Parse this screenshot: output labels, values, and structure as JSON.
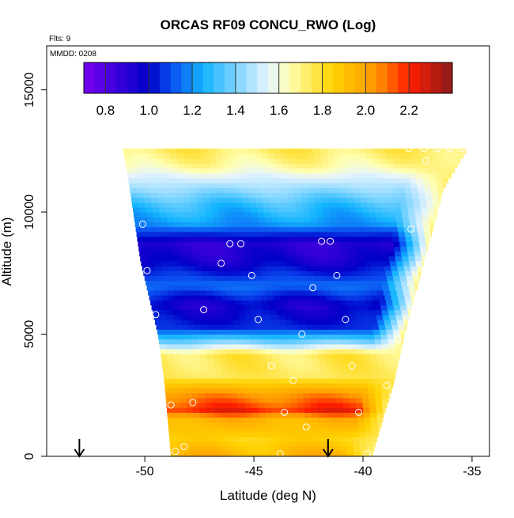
{
  "chart_data": {
    "type": "heatmap",
    "title": "ORCAS RF09 CONCU_RWO (Log)",
    "flights_label": "Flts: 9",
    "date_label": "MMDD: 0208",
    "xlabel": "Latitude (deg N)",
    "ylabel": "Altitude (m)",
    "xlim": [
      -54.5,
      -34.2
    ],
    "ylim": [
      0,
      16800
    ],
    "x_ticks": [
      -50,
      -45,
      -40,
      -35
    ],
    "x_tick_labels": [
      "-50",
      "-45",
      "-40",
      "-35"
    ],
    "y_ticks": [
      0,
      5000,
      10000,
      15000
    ],
    "y_tick_labels": [
      "0",
      "5000",
      "10000",
      "15000"
    ],
    "colorbar": {
      "range": [
        0.7,
        2.4
      ],
      "ticks": [
        0.8,
        1.0,
        1.2,
        1.4,
        1.6,
        1.8,
        2.0,
        2.2
      ],
      "tick_labels": [
        "0.8",
        "1.0",
        "1.2",
        "1.4",
        "1.6",
        "1.8",
        "2.0",
        "2.2"
      ],
      "colors": [
        "#7a00ee",
        "#0000c8",
        "#0a4cf0",
        "#12b4ff",
        "#e6f4ff",
        "#ffffb0",
        "#ffd200",
        "#ff9600",
        "#ff1e00",
        "#8b1a1a"
      ],
      "stops": [
        0.7,
        1.0,
        1.1,
        1.25,
        1.55,
        1.65,
        1.85,
        2.05,
        2.2,
        2.4
      ]
    },
    "domain": {
      "bottom": [
        -48.8,
        -39.6
      ],
      "top": [
        -51.0,
        -35.2
      ],
      "top_altitude": 12600,
      "side_breaks": [
        {
          "alt": 0,
          "left": -48.8,
          "right": -39.6
        },
        {
          "alt": 3000,
          "left": -49.1,
          "right": -38.6
        },
        {
          "alt": 5000,
          "left": -49.4,
          "right": -38.1
        },
        {
          "alt": 8000,
          "left": -50.2,
          "right": -37.2
        },
        {
          "alt": 11000,
          "left": -50.7,
          "right": -36.3
        },
        {
          "alt": 12600,
          "left": -51.0,
          "right": -35.2
        }
      ]
    },
    "layers": [
      {
        "alt": 0,
        "value": 1.95
      },
      {
        "alt": 700,
        "value": 1.85
      },
      {
        "alt": 1500,
        "value": 1.95
      },
      {
        "alt": 1900,
        "value": 2.2
      },
      {
        "alt": 2500,
        "value": 2.05
      },
      {
        "alt": 3300,
        "value": 1.75
      },
      {
        "alt": 4200,
        "value": 1.75
      },
      {
        "alt": 4600,
        "value": 1.45
      },
      {
        "alt": 5300,
        "value": 1.05
      },
      {
        "alt": 6200,
        "value": 0.95
      },
      {
        "alt": 7000,
        "value": 1.15
      },
      {
        "alt": 8000,
        "value": 0.95
      },
      {
        "alt": 8700,
        "value": 0.9
      },
      {
        "alt": 9500,
        "value": 1.2
      },
      {
        "alt": 10300,
        "value": 1.3
      },
      {
        "alt": 11000,
        "value": 1.45
      },
      {
        "alt": 11800,
        "value": 1.62
      },
      {
        "alt": 12600,
        "value": 1.72
      }
    ],
    "edge_values": {
      "right_edge": 1.75,
      "top_edge": 1.75
    },
    "observations": [
      {
        "lat": -50.1,
        "alt": 9500
      },
      {
        "lat": -49.9,
        "alt": 7600
      },
      {
        "lat": -49.5,
        "alt": 5800
      },
      {
        "lat": -48.8,
        "alt": 2100
      },
      {
        "lat": -47.8,
        "alt": 2200
      },
      {
        "lat": -48.6,
        "alt": 200
      },
      {
        "lat": -48.2,
        "alt": 400
      },
      {
        "lat": -47.3,
        "alt": 6000
      },
      {
        "lat": -46.5,
        "alt": 7900
      },
      {
        "lat": -46.1,
        "alt": 8700
      },
      {
        "lat": -45.6,
        "alt": 8700
      },
      {
        "lat": -45.1,
        "alt": 7400
      },
      {
        "lat": -44.8,
        "alt": 5600
      },
      {
        "lat": -44.2,
        "alt": 3700
      },
      {
        "lat": -43.6,
        "alt": 1800
      },
      {
        "lat": -43.2,
        "alt": 3100
      },
      {
        "lat": -42.6,
        "alt": 1200
      },
      {
        "lat": -42.8,
        "alt": 5000
      },
      {
        "lat": -42.3,
        "alt": 6900
      },
      {
        "lat": -41.9,
        "alt": 8800
      },
      {
        "lat": -41.5,
        "alt": 8800
      },
      {
        "lat": -41.2,
        "alt": 7400
      },
      {
        "lat": -40.8,
        "alt": 5600
      },
      {
        "lat": -40.5,
        "alt": 3700
      },
      {
        "lat": -40.2,
        "alt": 1800
      },
      {
        "lat": -39.8,
        "alt": 100
      },
      {
        "lat": -43.8,
        "alt": 100
      },
      {
        "lat": -38.9,
        "alt": 2900
      },
      {
        "lat": -38.4,
        "alt": 4800
      },
      {
        "lat": -37.8,
        "alt": 9300
      },
      {
        "lat": -37.4,
        "alt": 11200
      },
      {
        "lat": -37.1,
        "alt": 12100
      },
      {
        "lat": -37.9,
        "alt": 12600
      },
      {
        "lat": -37.2,
        "alt": 12600
      },
      {
        "lat": -36.6,
        "alt": 12600
      },
      {
        "lat": -36.0,
        "alt": 12600
      },
      {
        "lat": -35.5,
        "alt": 12600
      },
      {
        "lat": -35.2,
        "alt": 12600
      }
    ],
    "arrows": [
      {
        "lat": -53.0,
        "direction": "down"
      },
      {
        "lat": -41.6,
        "direction": "down"
      }
    ]
  }
}
